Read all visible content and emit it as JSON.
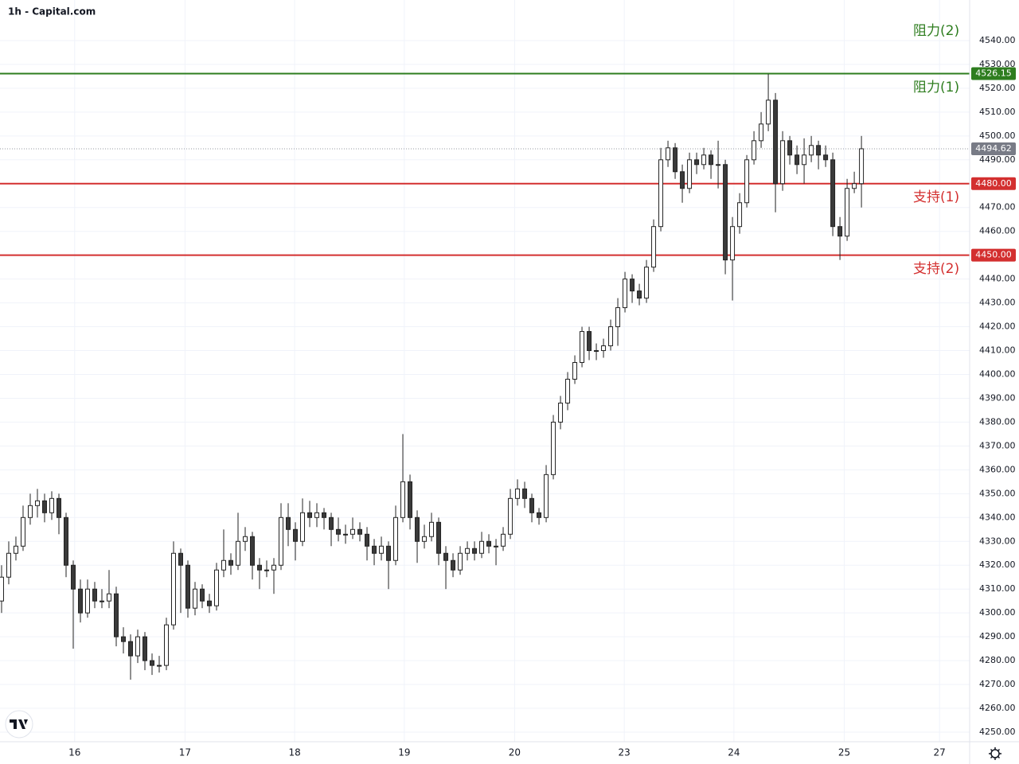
{
  "chart_data": {
    "type": "candlestick",
    "title": "1h - Capital.com",
    "candles": [
      [
        4305,
        4320,
        4300,
        4315
      ],
      [
        4315,
        4330,
        4312,
        4325
      ],
      [
        4325,
        4332,
        4322,
        4328
      ],
      [
        4328,
        4345,
        4326,
        4340
      ],
      [
        4340,
        4350,
        4337,
        4345
      ],
      [
        4345,
        4352,
        4340,
        4347
      ],
      [
        4347,
        4350,
        4338,
        4342
      ],
      [
        4342,
        4351,
        4339,
        4348
      ],
      [
        4348,
        4350,
        4333,
        4340
      ],
      [
        4340,
        4342,
        4315,
        4320
      ],
      [
        4320,
        4322,
        4285,
        4310
      ],
      [
        4310,
        4314,
        4296,
        4300
      ],
      [
        4300,
        4314,
        4298,
        4310
      ],
      [
        4310,
        4313,
        4302,
        4305
      ],
      [
        4305,
        4310,
        4302,
        4305
      ],
      [
        4305,
        4318,
        4302,
        4308
      ],
      [
        4308,
        4311,
        4286,
        4290
      ],
      [
        4290,
        4294,
        4283,
        4288
      ],
      [
        4288,
        4291,
        4272,
        4282
      ],
      [
        4282,
        4293,
        4279,
        4290
      ],
      [
        4290,
        4292,
        4276,
        4280
      ],
      [
        4280,
        4283,
        4274,
        4278
      ],
      [
        4278,
        4282,
        4275,
        4278
      ],
      [
        4278,
        4298,
        4276,
        4295
      ],
      [
        4295,
        4330,
        4293,
        4325
      ],
      [
        4325,
        4327,
        4300,
        4320
      ],
      [
        4320,
        4322,
        4298,
        4302
      ],
      [
        4302,
        4313,
        4299,
        4310
      ],
      [
        4310,
        4312,
        4302,
        4305
      ],
      [
        4305,
        4308,
        4300,
        4303
      ],
      [
        4303,
        4321,
        4301,
        4318
      ],
      [
        4318,
        4335,
        4315,
        4322
      ],
      [
        4322,
        4325,
        4316,
        4320
      ],
      [
        4320,
        4342,
        4318,
        4330
      ],
      [
        4330,
        4336,
        4326,
        4332
      ],
      [
        4332,
        4334,
        4314,
        4320
      ],
      [
        4320,
        4323,
        4310,
        4318
      ],
      [
        4318,
        4322,
        4315,
        4318
      ],
      [
        4318,
        4323,
        4308,
        4320
      ],
      [
        4320,
        4346,
        4318,
        4340
      ],
      [
        4340,
        4346,
        4328,
        4335
      ],
      [
        4335,
        4338,
        4322,
        4330
      ],
      [
        4330,
        4348,
        4328,
        4342
      ],
      [
        4342,
        4347,
        4336,
        4340
      ],
      [
        4340,
        4346,
        4336,
        4342
      ],
      [
        4342,
        4344,
        4335,
        4340
      ],
      [
        4340,
        4342,
        4328,
        4335
      ],
      [
        4335,
        4340,
        4330,
        4333
      ],
      [
        4333,
        4337,
        4329,
        4333
      ],
      [
        4333,
        4340,
        4331,
        4335
      ],
      [
        4335,
        4338,
        4330,
        4333
      ],
      [
        4333,
        4336,
        4322,
        4328
      ],
      [
        4328,
        4331,
        4320,
        4325
      ],
      [
        4325,
        4332,
        4322,
        4328
      ],
      [
        4328,
        4330,
        4310,
        4322
      ],
      [
        4322,
        4345,
        4320,
        4340
      ],
      [
        4340,
        4375,
        4338,
        4355
      ],
      [
        4355,
        4358,
        4335,
        4340
      ],
      [
        4340,
        4343,
        4321,
        4330
      ],
      [
        4330,
        4337,
        4327,
        4332
      ],
      [
        4332,
        4342,
        4330,
        4338
      ],
      [
        4338,
        4340,
        4320,
        4325
      ],
      [
        4325,
        4328,
        4310,
        4322
      ],
      [
        4322,
        4325,
        4315,
        4318
      ],
      [
        4318,
        4328,
        4316,
        4325
      ],
      [
        4325,
        4330,
        4322,
        4327
      ],
      [
        4327,
        4330,
        4322,
        4325
      ],
      [
        4325,
        4334,
        4323,
        4330
      ],
      [
        4330,
        4333,
        4325,
        4328
      ],
      [
        4328,
        4331,
        4320,
        4328
      ],
      [
        4328,
        4336,
        4326,
        4333
      ],
      [
        4333,
        4352,
        4331,
        4348
      ],
      [
        4348,
        4356,
        4345,
        4352
      ],
      [
        4352,
        4355,
        4344,
        4348
      ],
      [
        4348,
        4350,
        4338,
        4342
      ],
      [
        4342,
        4344,
        4337,
        4340
      ],
      [
        4340,
        4362,
        4338,
        4358
      ],
      [
        4358,
        4383,
        4356,
        4380
      ],
      [
        4380,
        4391,
        4377,
        4388
      ],
      [
        4388,
        4401,
        4385,
        4398
      ],
      [
        4398,
        4408,
        4396,
        4405
      ],
      [
        4405,
        4420,
        4403,
        4418
      ],
      [
        4418,
        4420,
        4406,
        4410
      ],
      [
        4410,
        4413,
        4406,
        4410
      ],
      [
        4410,
        4415,
        4407,
        4412
      ],
      [
        4412,
        4423,
        4410,
        4420
      ],
      [
        4420,
        4432,
        4412,
        4428
      ],
      [
        4428,
        4443,
        4426,
        4440
      ],
      [
        4440,
        4442,
        4430,
        4435
      ],
      [
        4435,
        4438,
        4429,
        4432
      ],
      [
        4432,
        4448,
        4430,
        4445
      ],
      [
        4445,
        4465,
        4443,
        4462
      ],
      [
        4462,
        4495,
        4460,
        4490
      ],
      [
        4490,
        4498,
        4487,
        4495
      ],
      [
        4495,
        4497,
        4482,
        4485
      ],
      [
        4485,
        4488,
        4472,
        4478
      ],
      [
        4478,
        4493,
        4476,
        4490
      ],
      [
        4490,
        4493,
        4484,
        4488
      ],
      [
        4488,
        4495,
        4486,
        4492
      ],
      [
        4492,
        4494,
        4482,
        4488
      ],
      [
        4488,
        4498,
        4478,
        4488
      ],
      [
        4488,
        4490,
        4442,
        4448
      ],
      [
        4448,
        4466,
        4431,
        4462
      ],
      [
        4462,
        4476,
        4459,
        4472
      ],
      [
        4472,
        4492,
        4470,
        4490
      ],
      [
        4490,
        4502,
        4488,
        4498
      ],
      [
        4498,
        4510,
        4495,
        4505
      ],
      [
        4505,
        4526,
        4502,
        4515
      ],
      [
        4515,
        4518,
        4468,
        4480
      ],
      [
        4480,
        4502,
        4477,
        4498
      ],
      [
        4498,
        4500,
        4488,
        4492
      ],
      [
        4492,
        4496,
        4484,
        4488
      ],
      [
        4488,
        4499,
        4480,
        4492
      ],
      [
        4492,
        4500,
        4489,
        4496
      ],
      [
        4496,
        4498,
        4486,
        4492
      ],
      [
        4492,
        4496,
        4487,
        4490
      ],
      [
        4490,
        4493,
        4458,
        4462
      ],
      [
        4462,
        4466,
        4448,
        4458
      ],
      [
        4458,
        4482,
        4456,
        4478
      ],
      [
        4478,
        4485,
        4476,
        4480
      ],
      [
        4480,
        4500,
        4470,
        4494.62
      ]
    ],
    "up_color": "#ffffff",
    "down_color": "#3a3a3a",
    "outline_color": "#222222",
    "xlim": [
      -0.22,
      135.1
    ],
    "xticks": [
      {
        "value": 10.2,
        "label": "16"
      },
      {
        "value": 25.6,
        "label": "17"
      },
      {
        "value": 40.9,
        "label": "18"
      },
      {
        "value": 56.2,
        "label": "19"
      },
      {
        "value": 71.6,
        "label": "20"
      },
      {
        "value": 86.9,
        "label": "23"
      },
      {
        "value": 102.2,
        "label": "24"
      },
      {
        "value": 117.6,
        "label": "25"
      },
      {
        "value": 130.9,
        "label": "27"
      }
    ],
    "ylim": [
      4246,
      4557
    ],
    "yticks": [
      {
        "value": 4250,
        "label": "4250.00"
      },
      {
        "value": 4260,
        "label": "4260.00"
      },
      {
        "value": 4270,
        "label": "4270.00"
      },
      {
        "value": 4280,
        "label": "4280.00"
      },
      {
        "value": 4290,
        "label": "4290.00"
      },
      {
        "value": 4300,
        "label": "4300.00"
      },
      {
        "value": 4310,
        "label": "4310.00"
      },
      {
        "value": 4320,
        "label": "4320.00"
      },
      {
        "value": 4330,
        "label": "4330.00"
      },
      {
        "value": 4340,
        "label": "4340.00"
      },
      {
        "value": 4350,
        "label": "4350.00"
      },
      {
        "value": 4360,
        "label": "4360.00"
      },
      {
        "value": 4370,
        "label": "4370.00"
      },
      {
        "value": 4380,
        "label": "4380.00"
      },
      {
        "value": 4390,
        "label": "4390.00"
      },
      {
        "value": 4400,
        "label": "4400.00"
      },
      {
        "value": 4410,
        "label": "4410.00"
      },
      {
        "value": 4420,
        "label": "4420.00"
      },
      {
        "value": 4430,
        "label": "4430.00"
      },
      {
        "value": 4440,
        "label": "4440.00"
      },
      {
        "value": 4450,
        "label": "4450.00"
      },
      {
        "value": 4460,
        "label": "4460.00"
      },
      {
        "value": 4470,
        "label": "4470.00"
      },
      {
        "value": 4480,
        "label": "4480.00"
      },
      {
        "value": 4490,
        "label": "4490.00"
      },
      {
        "value": 4500,
        "label": "4500.00"
      },
      {
        "value": 4510,
        "label": "4510.00"
      },
      {
        "value": 4520,
        "label": "4520.00"
      },
      {
        "value": 4530,
        "label": "4530.00"
      },
      {
        "value": 4540,
        "label": "4540.00"
      }
    ],
    "grid": true,
    "levels": [
      {
        "value": 4526.15,
        "color": "#2e7d1f"
      },
      {
        "value": 4480,
        "label": "4480.00",
        "color": "#d32f2f"
      },
      {
        "value": 4450,
        "label": "4450.00",
        "color": "#d32f2f"
      }
    ],
    "last_price": 4494.62,
    "last_price_color": "#787b86",
    "annotations": [
      {
        "text": "阻力(2)",
        "color": "#2e7d1f"
      },
      {
        "text": "阻力(1)",
        "color": "#2e7d1f"
      },
      {
        "text": "支持(1)",
        "color": "#d32f2f"
      },
      {
        "text": "支持(2)",
        "color": "#d32f2f"
      }
    ]
  }
}
